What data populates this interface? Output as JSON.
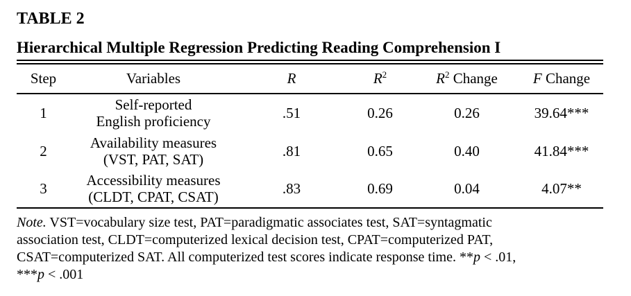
{
  "page": {
    "title": "TABLE 2",
    "subtitle": "Hierarchical Multiple Regression Predicting Reading Comprehension I"
  },
  "table": {
    "columns": [
      {
        "label": "Step"
      },
      {
        "label": "Variables"
      },
      {
        "italic": "R"
      },
      {
        "italic": "R",
        "sup": "2"
      },
      {
        "italic": "R",
        "sup": "2",
        "rest": " Change"
      },
      {
        "italic": "F",
        "rest": " Change"
      }
    ],
    "rows": [
      {
        "step": "1",
        "variable_line1": "Self-reported",
        "variable_line2": "English proficiency",
        "r": ".51",
        "r2": "0.26",
        "r2_change": "0.26",
        "f_change": "39.64***"
      },
      {
        "step": "2",
        "variable_line1": "Availability measures",
        "variable_line2": "(VST, PAT, SAT)",
        "r": ".81",
        "r2": "0.65",
        "r2_change": "0.40",
        "f_change": "41.84***"
      },
      {
        "step": "3",
        "variable_line1": "Accessibility measures",
        "variable_line2": "(CLDT, CPAT, CSAT)",
        "r": ".83",
        "r2": "0.69",
        "r2_change": "0.04",
        "f_change": "4.07**"
      }
    ]
  },
  "note": {
    "lines": [
      {
        "italic": "Note.",
        "text": " VST=vocabulary size test, PAT=paradigmatic associates test, SAT=syntagmatic"
      },
      {
        "text": "association test, CLDT=computerized lexical decision test, CPAT=computerized PAT,"
      },
      {
        "text": "CSAT=computerized SAT. All computerized test scores indicate response time. ",
        "stars": "**",
        "p": "p",
        "after": " < .01,"
      },
      {
        "stars": "***",
        "p": "p",
        "after": " < .001"
      }
    ]
  },
  "colors": {
    "text": "#000000",
    "background": "#ffffff",
    "rule": "#000000"
  }
}
